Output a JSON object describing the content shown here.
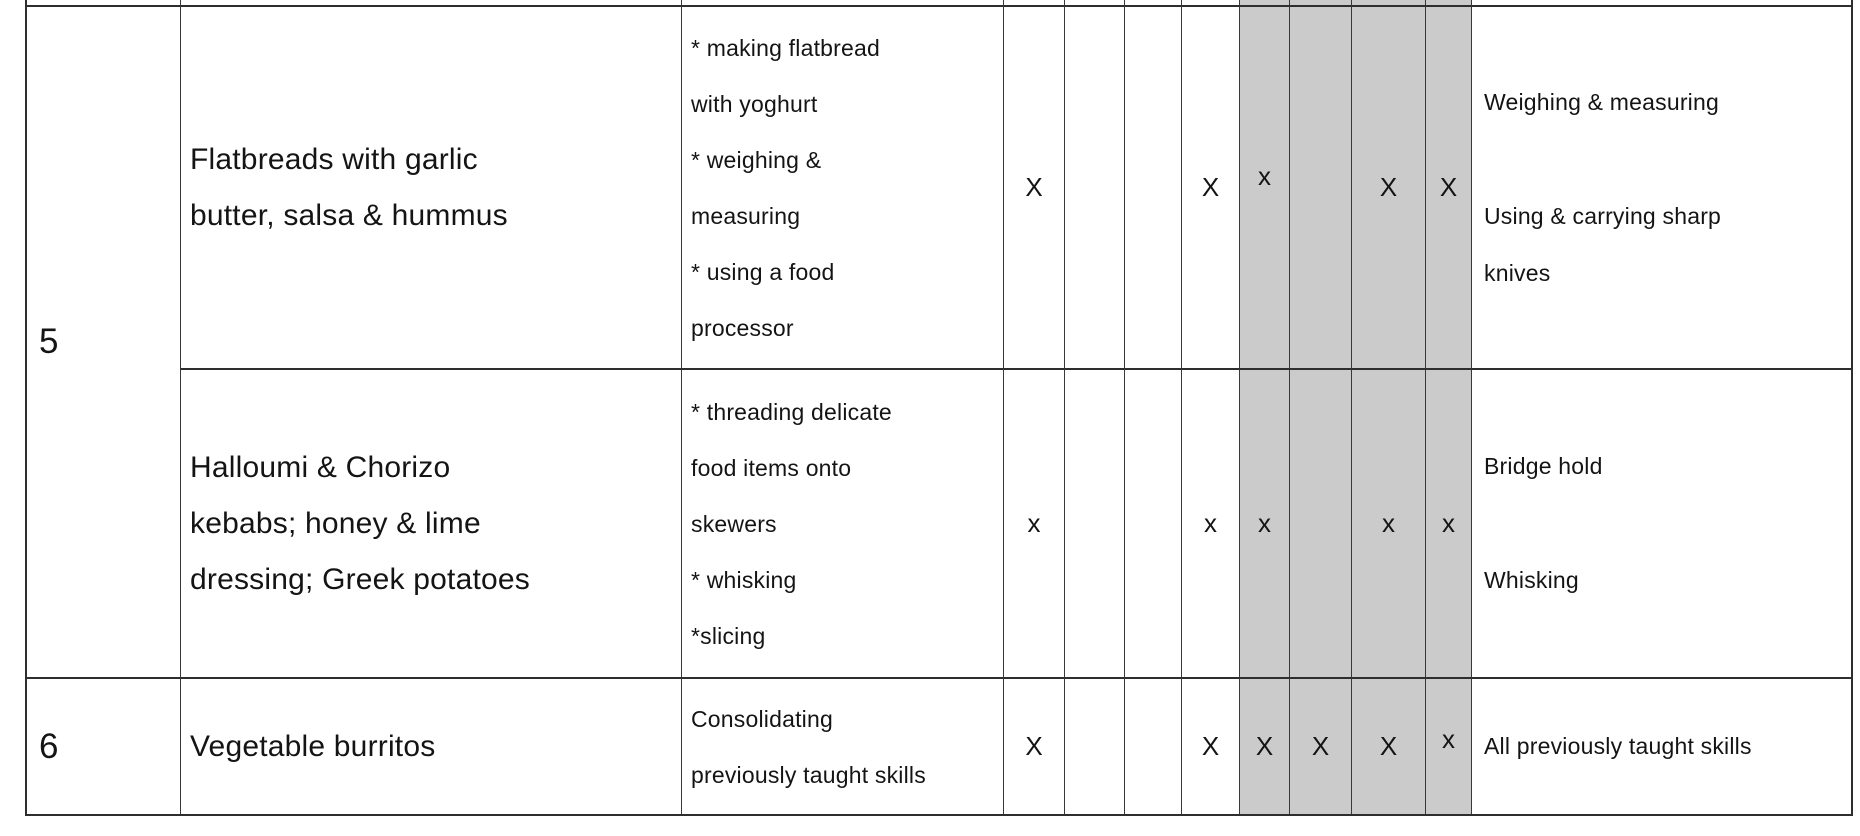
{
  "table": {
    "weeks": {
      "w5": "5",
      "w6": "6"
    },
    "shading_color": "#cbcbcb",
    "rows": [
      {
        "recipe": [
          "Flatbreads with garlic",
          "butter, salsa & hummus"
        ],
        "skills": [
          "* making flatbread",
          "with yoghurt",
          "* weighing &",
          "measuring",
          "* using a food",
          "processor"
        ],
        "marks": [
          "X",
          "",
          "",
          "X",
          "x",
          "",
          "X",
          "X"
        ],
        "focus": [
          "Weighing & measuring",
          "",
          "Using & carrying sharp",
          "knives"
        ]
      },
      {
        "recipe": [
          "Halloumi & Chorizo",
          "kebabs; honey & lime",
          "dressing; Greek potatoes"
        ],
        "skills": [
          "* threading delicate",
          "food items onto",
          "skewers",
          "* whisking",
          "*slicing"
        ],
        "marks": [
          "x",
          "",
          "",
          "x",
          "x",
          "",
          "x",
          "x"
        ],
        "focus": [
          "Bridge hold",
          "",
          "Whisking"
        ]
      },
      {
        "recipe": [
          "Vegetable burritos"
        ],
        "skills": [
          "Consolidating",
          "previously taught skills"
        ],
        "marks": [
          "X",
          "",
          "",
          "X",
          "X",
          "X",
          "X",
          "x"
        ],
        "focus": [
          "All previously taught skills"
        ]
      }
    ]
  }
}
